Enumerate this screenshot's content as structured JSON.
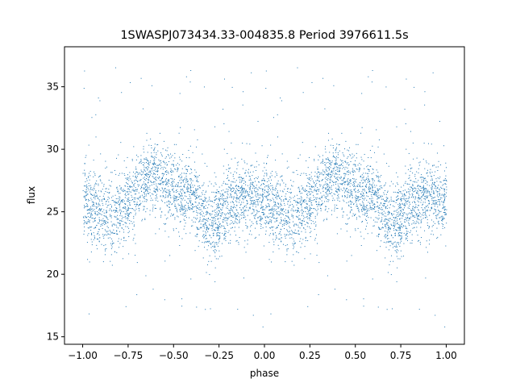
{
  "chart_data": {
    "type": "scatter",
    "title": "1SWASPJ073434.33-004835.8 Period 3976611.5s",
    "xlabel": "phase",
    "ylabel": "flux",
    "xlim": [
      -1.1,
      1.1
    ],
    "ylim": [
      14.4,
      38.2
    ],
    "x_ticks": [
      -1.0,
      -0.75,
      -0.5,
      -0.25,
      0.0,
      0.25,
      0.5,
      0.75,
      1.0
    ],
    "x_tick_labels": [
      "−1.00",
      "−0.75",
      "−0.50",
      "−0.25",
      "0.00",
      "0.25",
      "0.50",
      "0.75",
      "1.00"
    ],
    "y_ticks": [
      15,
      20,
      25,
      30,
      35
    ],
    "y_tick_labels": [
      "15",
      "20",
      "25",
      "30",
      "35"
    ],
    "grid": false,
    "point_color": "#1f77b4",
    "series": [
      {
        "profile": {
          "phase": [
            0.0,
            0.05,
            0.1,
            0.15,
            0.2,
            0.25,
            0.3,
            0.35,
            0.4,
            0.45,
            0.5,
            0.55,
            0.6,
            0.65,
            0.7,
            0.75,
            0.8,
            0.85,
            0.9,
            0.95,
            1.0
          ],
          "flux": [
            26.0,
            25.5,
            25.0,
            24.5,
            25.0,
            26.0,
            26.5,
            27.5,
            28.0,
            27.0,
            26.8,
            26.5,
            26.3,
            25.0,
            24.0,
            24.5,
            25.5,
            26.0,
            26.5,
            26.0,
            26.0
          ]
        },
        "typical_scatter": 1.5,
        "sparse_outlier_range": [
          15.5,
          37.0
        ]
      }
    ]
  }
}
